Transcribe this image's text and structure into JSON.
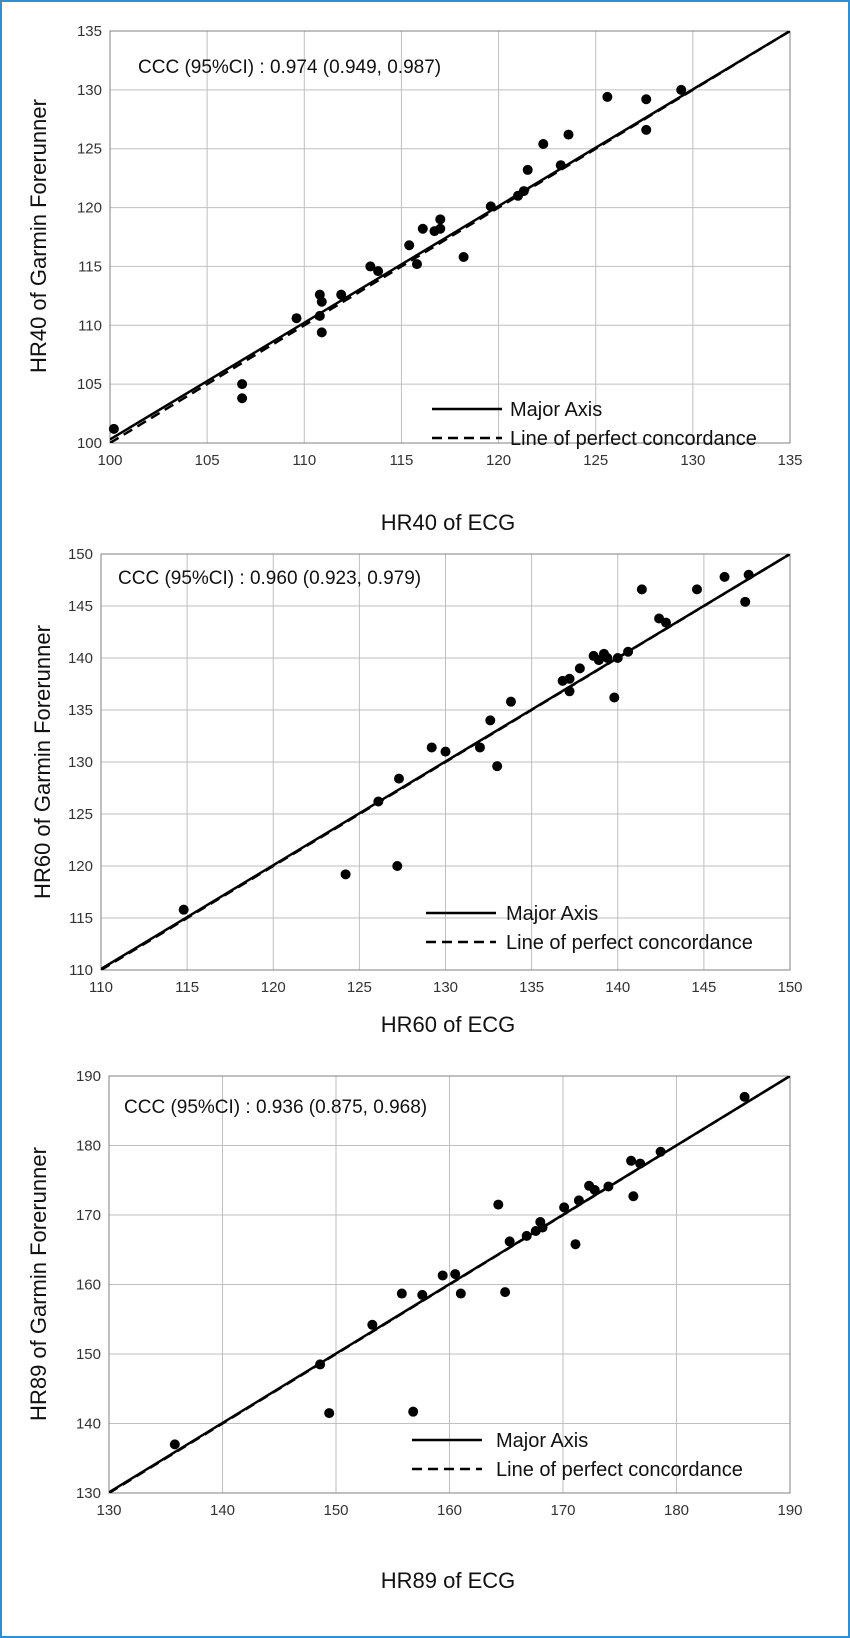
{
  "chart_data": [
    {
      "type": "scatter",
      "annotation": "CCC (95%CI) : 0.974 (0.949, 0.987)",
      "xlabel": "HR40 of ECG",
      "ylabel": "HR40 of Garmin Forerunner",
      "xlim": [
        100,
        135
      ],
      "ylim": [
        100,
        135
      ],
      "xticks": [
        100,
        105,
        110,
        115,
        120,
        125,
        130,
        135
      ],
      "yticks": [
        100,
        105,
        110,
        115,
        120,
        125,
        130,
        135
      ],
      "grid": true,
      "legend_position": "bottom-right",
      "legend": [
        "Major Axis",
        "Line of perfect concordance"
      ],
      "major_axis": [
        [
          100,
          100.3
        ],
        [
          135,
          135
        ]
      ],
      "points": [
        [
          100.2,
          101.2
        ],
        [
          106.8,
          105.0
        ],
        [
          106.8,
          103.8
        ],
        [
          109.6,
          110.6
        ],
        [
          110.8,
          112.6
        ],
        [
          110.9,
          112.0
        ],
        [
          110.8,
          110.8
        ],
        [
          110.9,
          109.4
        ],
        [
          111.9,
          112.6
        ],
        [
          113.4,
          115.0
        ],
        [
          113.8,
          114.6
        ],
        [
          115.4,
          116.8
        ],
        [
          115.8,
          115.2
        ],
        [
          116.1,
          118.2
        ],
        [
          116.7,
          118.0
        ],
        [
          117.0,
          118.2
        ],
        [
          117.0,
          119.0
        ],
        [
          118.2,
          115.8
        ],
        [
          119.6,
          120.1
        ],
        [
          121.0,
          121.0
        ],
        [
          121.3,
          121.4
        ],
        [
          121.5,
          123.2
        ],
        [
          122.3,
          125.4
        ],
        [
          123.2,
          123.6
        ],
        [
          123.6,
          126.2
        ],
        [
          125.6,
          129.4
        ],
        [
          127.6,
          129.2
        ],
        [
          127.6,
          126.6
        ],
        [
          129.4,
          130.0
        ]
      ]
    },
    {
      "type": "scatter",
      "annotation": "CCC (95%CI) : 0.960 (0.923, 0.979)",
      "xlabel": "HR60 of ECG",
      "ylabel": "HR60 of Garmin Forerunner",
      "xlim": [
        110,
        150
      ],
      "ylim": [
        110,
        150
      ],
      "xticks": [
        110,
        115,
        120,
        125,
        130,
        135,
        140,
        145,
        150
      ],
      "yticks": [
        110,
        115,
        120,
        125,
        130,
        135,
        140,
        145,
        150
      ],
      "grid": true,
      "legend_position": "bottom-right",
      "legend": [
        "Major Axis",
        "Line of perfect concordance"
      ],
      "major_axis": [
        [
          110,
          110.1
        ],
        [
          150,
          150
        ]
      ],
      "points": [
        [
          114.8,
          115.8
        ],
        [
          124.2,
          119.2
        ],
        [
          126.1,
          126.2
        ],
        [
          127.2,
          120.0
        ],
        [
          127.3,
          128.4
        ],
        [
          129.2,
          131.4
        ],
        [
          130.0,
          131.0
        ],
        [
          132.0,
          131.4
        ],
        [
          132.6,
          134.0
        ],
        [
          133.0,
          129.6
        ],
        [
          133.8,
          135.8
        ],
        [
          136.8,
          137.8
        ],
        [
          137.2,
          138.0
        ],
        [
          137.2,
          136.8
        ],
        [
          137.8,
          139.0
        ],
        [
          138.6,
          140.2
        ],
        [
          138.9,
          139.8
        ],
        [
          139.2,
          140.4
        ],
        [
          139.4,
          140.0
        ],
        [
          139.8,
          136.2
        ],
        [
          140.0,
          140.0
        ],
        [
          140.6,
          140.6
        ],
        [
          141.4,
          146.6
        ],
        [
          142.4,
          143.8
        ],
        [
          142.8,
          143.4
        ],
        [
          144.6,
          146.6
        ],
        [
          146.2,
          147.8
        ],
        [
          147.4,
          145.4
        ],
        [
          147.6,
          148.0
        ]
      ]
    },
    {
      "type": "scatter",
      "annotation": "CCC (95%CI) : 0.936 (0.875, 0.968)",
      "xlabel": "HR89 of ECG",
      "ylabel": "HR89 of Garmin Forerunner",
      "xlim": [
        130,
        190
      ],
      "ylim": [
        130,
        190
      ],
      "xticks": [
        130,
        140,
        150,
        160,
        170,
        180,
        190
      ],
      "yticks": [
        130,
        140,
        150,
        160,
        170,
        180,
        190
      ],
      "grid": true,
      "legend_position": "bottom-right",
      "legend": [
        "Major Axis",
        "Line of perfect concordance"
      ],
      "major_axis": [
        [
          130,
          130.1
        ],
        [
          190,
          190
        ]
      ],
      "points": [
        [
          135.8,
          137.0
        ],
        [
          148.6,
          148.5
        ],
        [
          149.4,
          141.5
        ],
        [
          153.2,
          154.2
        ],
        [
          155.8,
          158.7
        ],
        [
          156.8,
          141.7
        ],
        [
          157.6,
          158.5
        ],
        [
          159.4,
          161.3
        ],
        [
          160.5,
          161.5
        ],
        [
          161.0,
          158.7
        ],
        [
          164.3,
          171.5
        ],
        [
          164.9,
          158.9
        ],
        [
          165.3,
          166.2
        ],
        [
          166.8,
          167.0
        ],
        [
          167.6,
          167.7
        ],
        [
          168.0,
          169.0
        ],
        [
          168.2,
          168.2
        ],
        [
          170.1,
          171.1
        ],
        [
          171.1,
          165.8
        ],
        [
          171.4,
          172.1
        ],
        [
          172.3,
          174.2
        ],
        [
          172.8,
          173.6
        ],
        [
          174.0,
          174.1
        ],
        [
          176.0,
          177.8
        ],
        [
          176.2,
          172.7
        ],
        [
          176.8,
          177.4
        ],
        [
          178.6,
          179.1
        ],
        [
          186.0,
          187.0
        ]
      ]
    }
  ],
  "colors": {
    "frame": "#2e8fd6",
    "grid": "#bfbfbf",
    "marks": "#000000"
  }
}
